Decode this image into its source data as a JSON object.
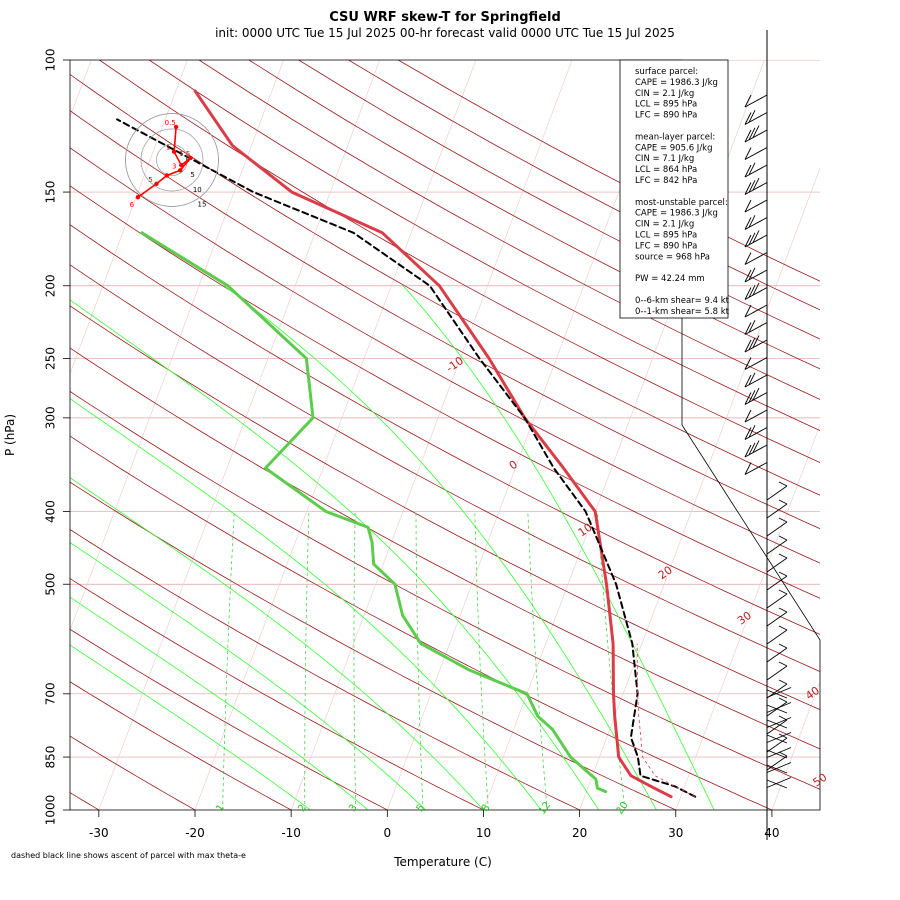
{
  "title": "CSU WRF skew-T for Springfield",
  "subtitle": "init: 0000 UTC Tue 15 Jul 2025     00-hr forecast valid 0000 UTC Tue 15 Jul 2025",
  "footnote": "dashed black line shows ascent of parcel with max theta-e",
  "stats": [
    "surface parcel:",
    "CAPE = 1986.3 J/kg",
    "CIN = 2.1 J/kg",
    "LCL = 895 hPa",
    "LFC = 890 hPa",
    "",
    "mean-layer parcel:",
    "CAPE = 905.6 J/kg",
    "CIN = 7.1 J/kg",
    "LCL = 864 hPa",
    "LFC = 842 hPa",
    "",
    "most-unstable parcel:",
    "CAPE = 1986.3 J/kg",
    "CIN = 2.1 J/kg",
    "LCL = 895 hPa",
    "LFC = 890 hPa",
    "source = 968 hPa",
    "",
    "PW =  42.24 mm",
    "",
    "0--6-km shear= 9.4 kt",
    "0--1-km shear= 5.8 kt"
  ],
  "chart_data": {
    "type": "line",
    "xlabel": "Temperature (C)",
    "ylabel": "P (hPa)",
    "x_ticks": [
      -30,
      -20,
      -10,
      0,
      10,
      20,
      30,
      40
    ],
    "y_ticks": [
      100,
      150,
      200,
      250,
      300,
      400,
      500,
      700,
      850,
      1000
    ],
    "xlim": [
      -33,
      45
    ],
    "ylim": [
      1000,
      100
    ],
    "isotherm_labels": [
      {
        "text": "-10",
        "t": -10,
        "p": 257
      },
      {
        "text": "0",
        "t": 0,
        "p": 350
      },
      {
        "text": "10",
        "t": 10,
        "p": 427
      },
      {
        "text": "20",
        "t": 20,
        "p": 487
      },
      {
        "text": "30",
        "t": 30,
        "p": 560
      },
      {
        "text": "40",
        "t": 40,
        "p": 705
      },
      {
        "text": "50",
        "t": 50,
        "p": 920
      }
    ],
    "mixing_ratio_labels": [
      "1",
      "2",
      "3",
      "5",
      "8",
      "12",
      "20"
    ],
    "hodograph_ring_labels": [
      "0",
      "5",
      "10",
      "15"
    ],
    "hodograph_point_labels": [
      "0.5",
      "1",
      "1.5",
      "3",
      "5",
      "6"
    ],
    "series": [
      {
        "name": "temperature",
        "color": "#dc3c46",
        "points": [
          [
            29,
            960
          ],
          [
            26.5,
            930
          ],
          [
            24,
            900
          ],
          [
            22,
            850
          ],
          [
            20,
            750
          ],
          [
            19,
            700
          ],
          [
            17,
            600
          ],
          [
            14,
            500
          ],
          [
            10,
            400
          ],
          [
            5,
            350
          ],
          [
            -1,
            300
          ],
          [
            -7,
            250
          ],
          [
            -15,
            200
          ],
          [
            -23,
            170
          ],
          [
            -34,
            150
          ],
          [
            -42,
            130
          ],
          [
            -48,
            110
          ]
        ]
      },
      {
        "name": "dewpoint",
        "color": "#5ccc4c",
        "points": [
          [
            22,
            945
          ],
          [
            21,
            935
          ],
          [
            20.5,
            910
          ],
          [
            17,
            850
          ],
          [
            14,
            780
          ],
          [
            12,
            750
          ],
          [
            10,
            700
          ],
          [
            3,
            650
          ],
          [
            -3,
            600
          ],
          [
            -6,
            550
          ],
          [
            -8,
            500
          ],
          [
            -11,
            470
          ],
          [
            -12,
            440
          ],
          [
            -13,
            420
          ],
          [
            -18,
            400
          ],
          [
            -26,
            350
          ],
          [
            -23,
            300
          ],
          [
            -26,
            250
          ],
          [
            -37,
            200
          ],
          [
            -48,
            170
          ]
        ]
      },
      {
        "name": "parcel",
        "color": "#000000",
        "points": [
          [
            31.5,
            960
          ],
          [
            29,
            930
          ],
          [
            25,
            900
          ],
          [
            24,
            850
          ],
          [
            22.5,
            800
          ],
          [
            21.5,
            700
          ],
          [
            19,
            600
          ],
          [
            15,
            500
          ],
          [
            9,
            400
          ],
          [
            4,
            350
          ],
          [
            -1,
            300
          ],
          [
            -8,
            250
          ],
          [
            -16,
            200
          ],
          [
            -26,
            170
          ],
          [
            -38,
            150
          ],
          [
            -55,
            120
          ]
        ]
      }
    ],
    "hodograph": [
      [
        0.4,
        3.2
      ],
      [
        0.2,
        0.8
      ],
      [
        0.9,
        -0.5
      ],
      [
        1.8,
        0.2
      ],
      [
        0.8,
        -1.0
      ],
      [
        -0.5,
        -1.5
      ],
      [
        -1.5,
        -2.3
      ],
      [
        -3.3,
        -3.6
      ]
    ]
  }
}
